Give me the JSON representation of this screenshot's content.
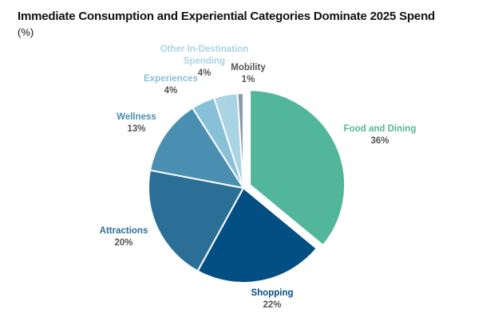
{
  "chart_data": {
    "type": "pie",
    "title": "Immediate Consumption and Experiential Categories Dominate 2025 Spend",
    "subtitle": "(%)",
    "slices": [
      {
        "label": "Food and Dining",
        "value": 36,
        "display": "36%",
        "color": "#52b79a",
        "exploded": true
      },
      {
        "label": "Shopping",
        "value": 22,
        "display": "22%",
        "color": "#034f84"
      },
      {
        "label": "Attractions",
        "value": 20,
        "display": "20%",
        "color": "#2b6f97"
      },
      {
        "label": "Wellness",
        "value": 13,
        "display": "13%",
        "color": "#4a8fb1"
      },
      {
        "label": "Experiences",
        "value": 4,
        "display": "4%",
        "color": "#88c0d8"
      },
      {
        "label": "Other In-Destination Spending",
        "value": 4,
        "display": "4%",
        "color": "#a8d4e4"
      },
      {
        "label": "Mobility",
        "value": 1,
        "display": "1%",
        "color": "#8a9aa8"
      }
    ]
  }
}
